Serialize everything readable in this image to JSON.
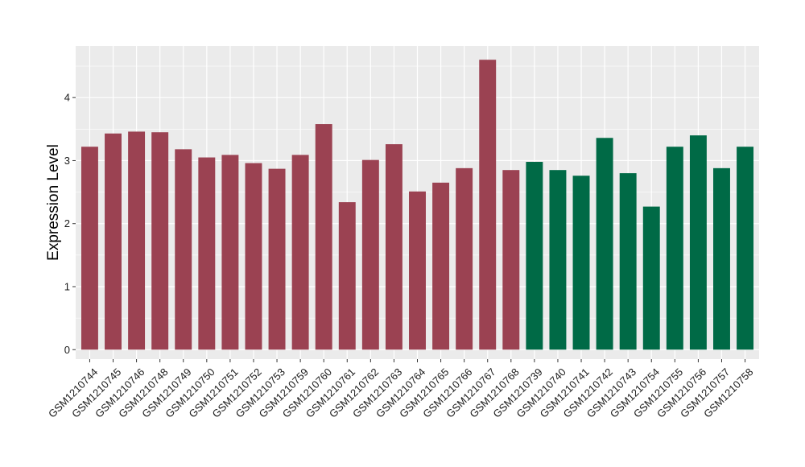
{
  "chart_data": {
    "type": "bar",
    "title": "",
    "xlabel": "",
    "ylabel": "Expression Level",
    "ylim": [
      -0.15,
      4.82
    ],
    "yticks": [
      0,
      1,
      2,
      3,
      4
    ],
    "grid": true,
    "legend": "none",
    "background": "#EBEBEB",
    "gridline_color": "#FFFFFF",
    "group_colors": [
      "#9B4252",
      "#006A46"
    ],
    "categories": [
      "GSM1210744",
      "GSM1210745",
      "GSM1210746",
      "GSM1210748",
      "GSM1210749",
      "GSM1210750",
      "GSM1210751",
      "GSM1210752",
      "GSM1210753",
      "GSM1210759",
      "GSM1210760",
      "GSM1210761",
      "GSM1210762",
      "GSM1210763",
      "GSM1210764",
      "GSM1210765",
      "GSM1210766",
      "GSM1210767",
      "GSM1210768",
      "GSM1210739",
      "GSM1210740",
      "GSM1210741",
      "GSM1210742",
      "GSM1210743",
      "GSM1210754",
      "GSM1210755",
      "GSM1210756",
      "GSM1210757",
      "GSM1210758"
    ],
    "values": [
      3.22,
      3.43,
      3.46,
      3.45,
      3.18,
      3.05,
      3.09,
      2.96,
      2.87,
      3.09,
      3.58,
      2.34,
      3.01,
      3.26,
      2.51,
      2.65,
      2.88,
      4.6,
      2.85,
      2.98,
      2.85,
      2.76,
      3.36,
      2.8,
      2.27,
      3.22,
      3.4,
      2.88,
      3.22
    ],
    "groups": [
      0,
      0,
      0,
      0,
      0,
      0,
      0,
      0,
      0,
      0,
      0,
      0,
      0,
      0,
      0,
      0,
      0,
      0,
      0,
      1,
      1,
      1,
      1,
      1,
      1,
      1,
      1,
      1,
      1
    ]
  }
}
